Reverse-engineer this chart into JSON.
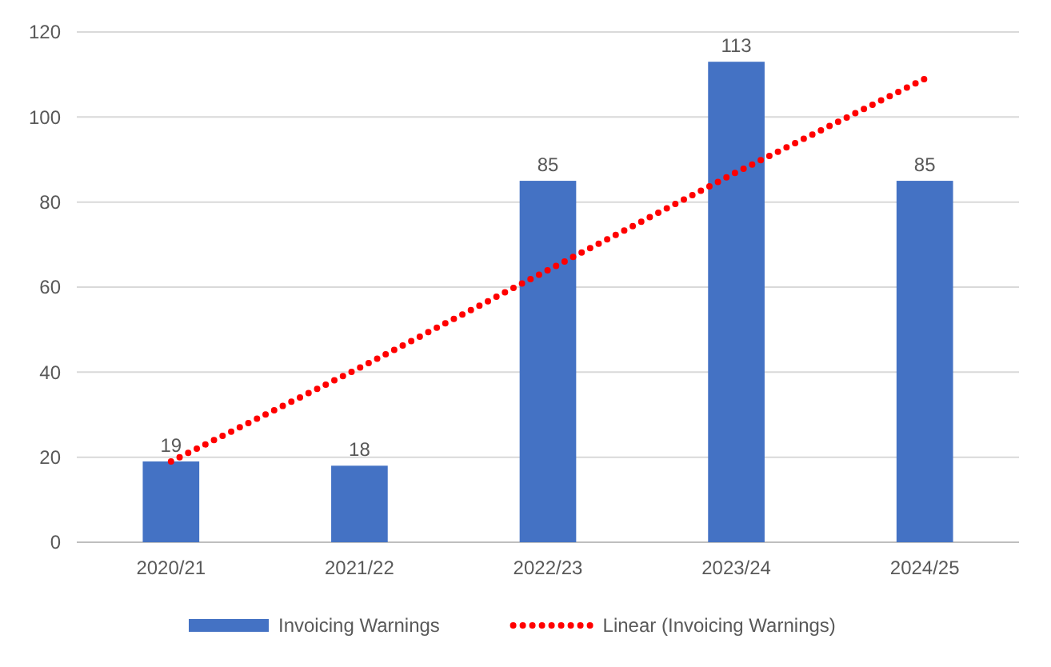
{
  "chart_data": {
    "type": "bar",
    "categories": [
      "2020/21",
      "2021/22",
      "2022/23",
      "2023/24",
      "2024/25"
    ],
    "series": [
      {
        "name": "Invoicing Warnings",
        "color": "#4472c4",
        "values": [
          19,
          18,
          85,
          113,
          85
        ],
        "value_labels": [
          "19",
          "18",
          "85",
          "113",
          "85"
        ]
      },
      {
        "name": "Linear (Invoicing Warnings)",
        "type": "line",
        "color": "#ff0000",
        "line_style": "dotted",
        "values": [
          19,
          41,
          64,
          87,
          109
        ]
      }
    ],
    "ylim": [
      0,
      120
    ],
    "yticks": [
      0,
      20,
      40,
      60,
      80,
      100,
      120
    ],
    "grid": "y",
    "legend": "bottom"
  }
}
